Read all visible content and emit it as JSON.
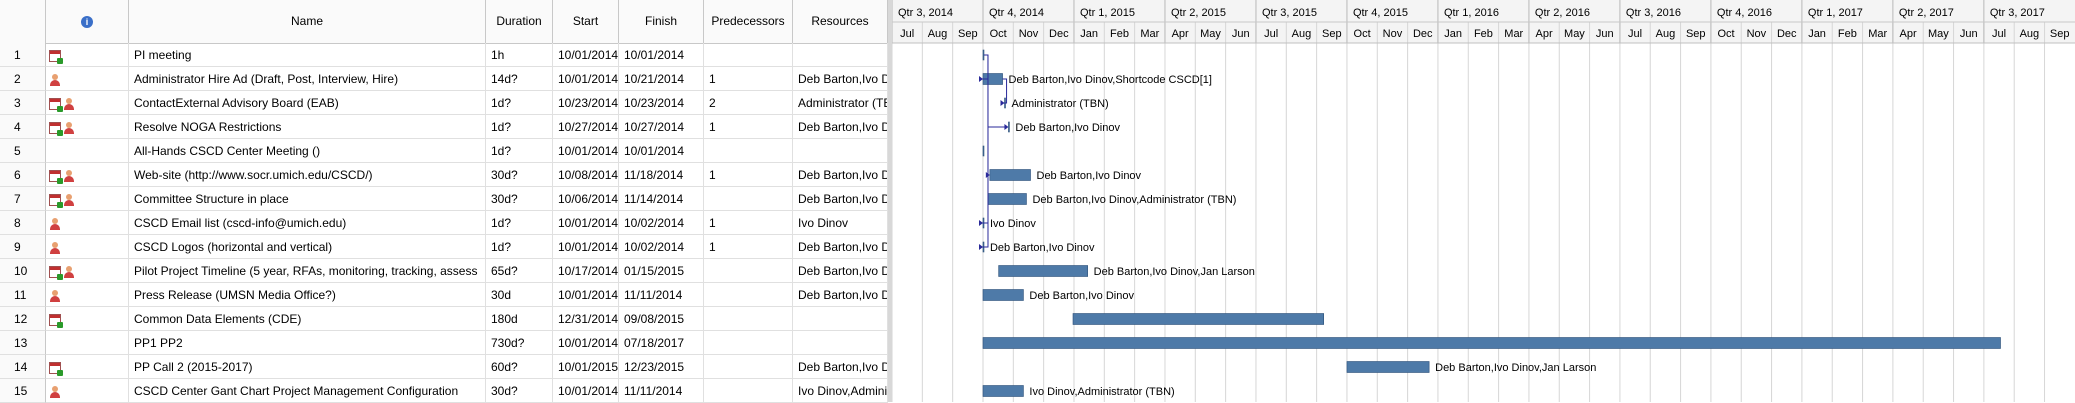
{
  "columns": {
    "id": "",
    "info_icon": "i",
    "name": "Name",
    "duration": "Duration",
    "start": "Start",
    "finish": "Finish",
    "predecessors": "Predecessors",
    "resources": "Resources"
  },
  "rows": [
    {
      "id": "1",
      "icons": [
        "calendar"
      ],
      "name": "PI meeting",
      "duration": "1h",
      "start": "10/01/2014",
      "finish": "10/01/2014",
      "pred": "",
      "res": ""
    },
    {
      "id": "2",
      "icons": [
        "user"
      ],
      "name": "Administrator Hire Ad (Draft, Post, Interview, Hire)",
      "duration": "14d?",
      "start": "10/01/2014",
      "finish": "10/21/2014",
      "pred": "1",
      "res": "Deb Barton,Ivo D"
    },
    {
      "id": "3",
      "icons": [
        "calendar",
        "user"
      ],
      "name": "ContactExternal Advisory Board (EAB)",
      "duration": "1d?",
      "start": "10/23/2014",
      "finish": "10/23/2014",
      "pred": "2",
      "res": "Administrator (TE"
    },
    {
      "id": "4",
      "icons": [
        "calendar",
        "user"
      ],
      "name": "Resolve NOGA Restrictions",
      "duration": "1d?",
      "start": "10/27/2014",
      "finish": "10/27/2014",
      "pred": "1",
      "res": "Deb Barton,Ivo D"
    },
    {
      "id": "5",
      "icons": [],
      "name": "All-Hands CSCD Center Meeting ()",
      "duration": "1d?",
      "start": "10/01/2014",
      "finish": "10/01/2014",
      "pred": "",
      "res": ""
    },
    {
      "id": "6",
      "icons": [
        "calendar",
        "user"
      ],
      "name": "Web-site (http://www.socr.umich.edu/CSCD/)",
      "duration": "30d?",
      "start": "10/08/2014",
      "finish": "11/18/2014",
      "pred": "1",
      "res": "Deb Barton,Ivo D"
    },
    {
      "id": "7",
      "icons": [
        "calendar",
        "user"
      ],
      "name": "Committee Structure in place",
      "duration": "30d?",
      "start": "10/06/2014",
      "finish": "11/14/2014",
      "pred": "",
      "res": "Deb Barton,Ivo D"
    },
    {
      "id": "8",
      "icons": [
        "user"
      ],
      "name": "CSCD Email list (cscd-info@umich.edu)",
      "duration": "1d?",
      "start": "10/01/2014",
      "finish": "10/02/2014",
      "pred": "1",
      "res": "Ivo Dinov"
    },
    {
      "id": "9",
      "icons": [
        "user"
      ],
      "name": "CSCD Logos (horizontal and vertical)",
      "duration": "1d?",
      "start": "10/01/2014",
      "finish": "10/02/2014",
      "pred": "1",
      "res": "Deb Barton,Ivo D"
    },
    {
      "id": "10",
      "icons": [
        "calendar",
        "user"
      ],
      "name": "Pilot Project Timeline (5 year, RFAs, monitoring, tracking, assess",
      "duration": "65d?",
      "start": "10/17/2014",
      "finish": "01/15/2015",
      "pred": "",
      "res": "Deb Barton,Ivo D"
    },
    {
      "id": "11",
      "icons": [
        "user"
      ],
      "name": "Press Release (UMSN Media Office?)",
      "duration": "30d",
      "start": "10/01/2014",
      "finish": "11/11/2014",
      "pred": "",
      "res": "Deb Barton,Ivo D"
    },
    {
      "id": "12",
      "icons": [
        "calendar"
      ],
      "name": "Common Data Elements (CDE)",
      "duration": "180d",
      "start": "12/31/2014",
      "finish": "09/08/2015",
      "pred": "",
      "res": ""
    },
    {
      "id": "13",
      "icons": [],
      "name": "PP1 PP2",
      "duration": "730d?",
      "start": "10/01/2014",
      "finish": "07/18/2017",
      "pred": "",
      "res": ""
    },
    {
      "id": "14",
      "icons": [
        "calendar"
      ],
      "name": "PP Call 2 (2015-2017)",
      "duration": "60d?",
      "start": "10/01/2015",
      "finish": "12/23/2015",
      "pred": "",
      "res": "Deb Barton,Ivo D"
    },
    {
      "id": "15",
      "icons": [
        "user"
      ],
      "name": "CSCD Center Gant Chart Project Management Configuration",
      "duration": "30d?",
      "start": "10/01/2014",
      "finish": "11/11/2014",
      "pred": "",
      "res": "Ivo Dinov,Admini"
    }
  ],
  "timeline": {
    "quarters": [
      "Qtr 3, 2014",
      "Qtr 4, 2014",
      "Qtr 1, 2015",
      "Qtr 2, 2015",
      "Qtr 3, 2015",
      "Qtr 4, 2015",
      "Qtr 1, 2016",
      "Qtr 2, 2016",
      "Qtr 3, 2016",
      "Qtr 4, 2016",
      "Qtr 1, 2017",
      "Qtr 2, 2017",
      "Qtr 3, 2017"
    ],
    "months": [
      "Jul",
      "Aug",
      "Sep",
      "Oct",
      "Nov",
      "Dec",
      "Jan",
      "Feb",
      "Mar",
      "Apr",
      "May",
      "Jun",
      "Jul",
      "Aug",
      "Sep",
      "Oct",
      "Nov",
      "Dec",
      "Jan",
      "Feb",
      "Mar",
      "Apr",
      "May",
      "Jun",
      "Jul",
      "Aug",
      "Sep",
      "Oct",
      "Nov",
      "Dec",
      "Jan",
      "Feb",
      "Mar",
      "Apr",
      "May",
      "Jun",
      "Jul",
      "Aug",
      "Sep"
    ],
    "bar_labels": [
      "",
      "Deb Barton,Ivo Dinov,Shortcode CSCD[1]",
      "Administrator (TBN)",
      "Deb Barton,Ivo Dinov",
      "",
      "Deb Barton,Ivo Dinov",
      "Deb Barton,Ivo Dinov,Administrator (TBN)",
      "Ivo Dinov",
      "Deb Barton,Ivo Dinov",
      "Deb Barton,Ivo Dinov,Jan Larson",
      "Deb Barton,Ivo Dinov",
      "",
      "",
      "Deb Barton,Ivo Dinov,Jan Larson",
      "Ivo Dinov,Administrator (TBN)"
    ],
    "colors": {
      "bar": "#4e7aa8",
      "bar_border": "#2b4f78",
      "link": "#2a2a9a",
      "grid": "#d6d6d6",
      "header": "#f4f4f4"
    }
  }
}
